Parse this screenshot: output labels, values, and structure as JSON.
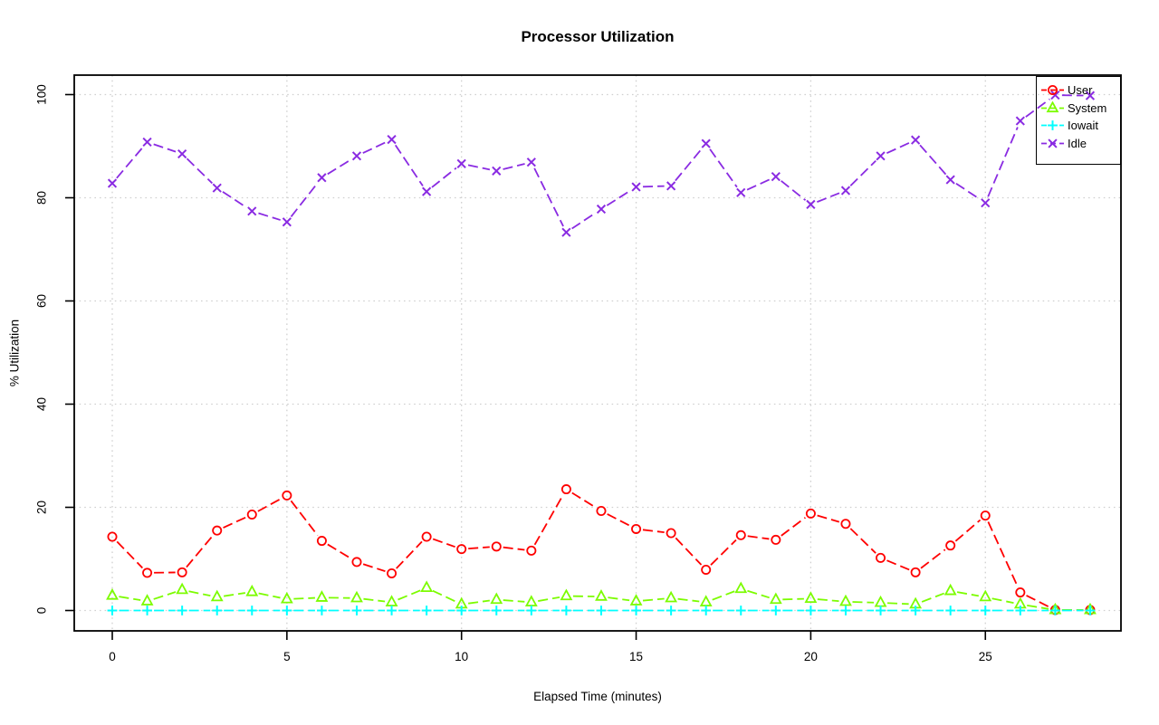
{
  "chart_data": {
    "type": "line",
    "title": "Processor Utilization",
    "xlabel": "Elapsed Time (minutes)",
    "ylabel": "% Utilization",
    "x": [
      0,
      1,
      2,
      3,
      4,
      5,
      6,
      7,
      8,
      9,
      10,
      11,
      12,
      13,
      14,
      15,
      16,
      17,
      18,
      19,
      20,
      21,
      22,
      23,
      24,
      25,
      26,
      27,
      28
    ],
    "x_ticks": [
      0,
      5,
      10,
      15,
      20,
      25
    ],
    "y_ticks": [
      0,
      20,
      40,
      60,
      80,
      100
    ],
    "xlim": [
      -1.1,
      29.1
    ],
    "ylim": [
      -4,
      104
    ],
    "grid": true,
    "grid_style": "dotted",
    "line_style": "dashed",
    "legend_position": "topright",
    "series": [
      {
        "name": "User",
        "color": "#ff0000",
        "marker": "circle",
        "values": [
          14.3,
          7.3,
          7.4,
          15.5,
          18.6,
          22.3,
          13.5,
          9.4,
          7.2,
          14.3,
          11.9,
          12.4,
          11.6,
          23.5,
          19.3,
          15.8,
          15.0,
          7.9,
          14.6,
          13.7,
          18.8,
          16.8,
          10.2,
          7.4,
          12.6,
          18.4,
          3.5,
          0.1,
          0.1
        ]
      },
      {
        "name": "System",
        "color": "#7cfc00",
        "marker": "triangle",
        "values": [
          2.9,
          1.8,
          4.0,
          2.6,
          3.6,
          2.2,
          2.5,
          2.4,
          1.6,
          4.4,
          1.2,
          2.1,
          1.6,
          2.8,
          2.7,
          1.8,
          2.4,
          1.6,
          4.2,
          2.1,
          2.3,
          1.7,
          1.5,
          1.2,
          3.8,
          2.6,
          1.2,
          0.1,
          0.1
        ]
      },
      {
        "name": "Iowait",
        "color": "#00ffff",
        "marker": "plus",
        "values": [
          0,
          0,
          0,
          0,
          0,
          0,
          0,
          0,
          0,
          0,
          0,
          0,
          0,
          0,
          0,
          0,
          0,
          0,
          0,
          0,
          0,
          0,
          0,
          0,
          0,
          0,
          0,
          0,
          0
        ]
      },
      {
        "name": "Idle",
        "color": "#8a2be2",
        "marker": "x",
        "values": [
          82.8,
          90.8,
          88.5,
          81.9,
          77.4,
          75.3,
          83.9,
          88.1,
          91.3,
          81.2,
          86.6,
          85.2,
          86.9,
          73.3,
          77.8,
          82.1,
          82.3,
          90.5,
          81.0,
          84.1,
          78.7,
          81.4,
          88.1,
          91.2,
          83.5,
          79.0,
          94.9,
          99.9,
          99.8
        ]
      }
    ],
    "axis_color": "#000000",
    "grid_color": "#d0d0d0",
    "text_color": "#000000",
    "background": "#ffffff"
  }
}
